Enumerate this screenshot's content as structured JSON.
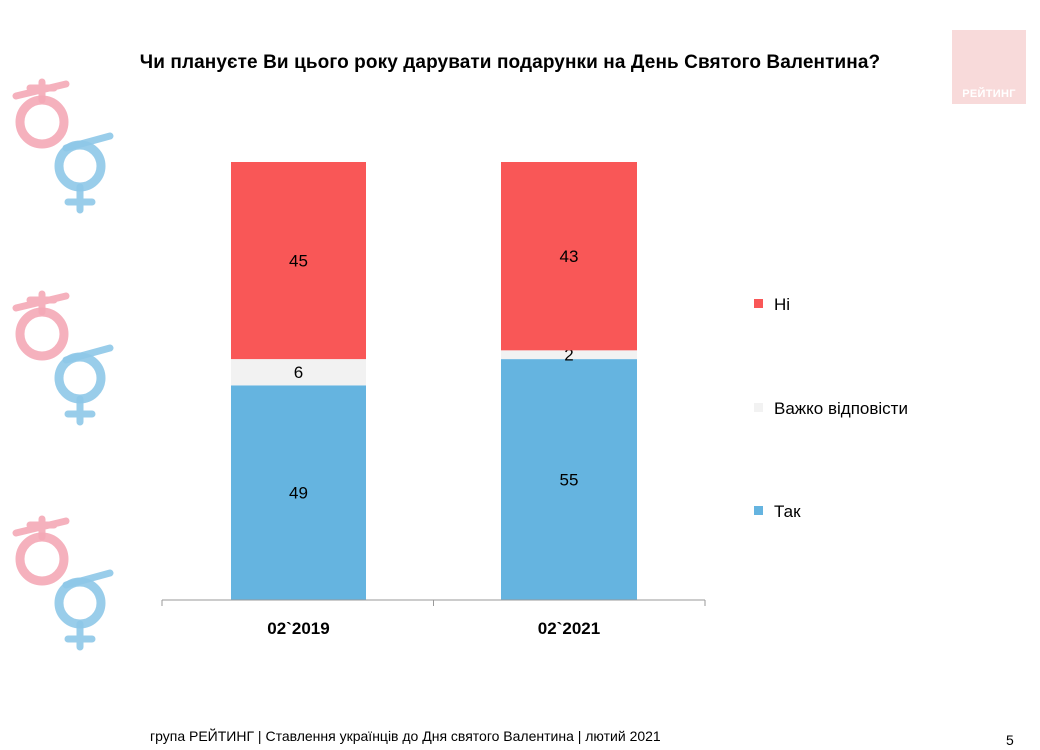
{
  "title": "Чи плануєте Ви цього року дарувати подарунки на День Святого Валентина?",
  "logo": {
    "text": "РЕЙТИНГ"
  },
  "decorations": {
    "icon": "gender-symbols-icon"
  },
  "colors": {
    "ni": "#f95757",
    "vazhko": "#f2f2f2",
    "tak": "#65b4e0"
  },
  "chart_data": {
    "type": "bar",
    "stacked": true,
    "categories": [
      "02`2019",
      "02`2021"
    ],
    "series": [
      {
        "name": "Так",
        "values": [
          49,
          55
        ]
      },
      {
        "name": "Важко відповісти",
        "values": [
          6,
          2
        ]
      },
      {
        "name": "Ні",
        "values": [
          45,
          43
        ]
      }
    ],
    "ylim": [
      0,
      100
    ],
    "legend": "right",
    "grid": false
  },
  "legend": [
    {
      "name": "Ні"
    },
    {
      "name": "Важко відповісти"
    },
    {
      "name": "Так"
    }
  ],
  "footer": "група РЕЙТИНГ | Ставлення українців до Дня святого Валентина | лютий 2021",
  "page_number": "5"
}
